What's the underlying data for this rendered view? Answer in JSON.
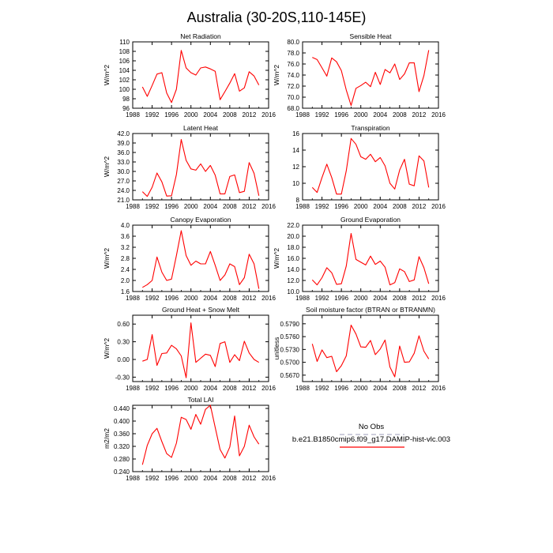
{
  "figure": {
    "title": "Australia (30-20S,110-145E)",
    "line_color": "#ff0000"
  },
  "legend": {
    "entries": [
      {
        "label": "No Obs",
        "color": "#b0b0c8",
        "dash": true
      },
      {
        "label": "b.e21.B1850cmip6.f09_g17.DAMIP-hist-vlc.003",
        "color": "#ff0000",
        "dash": false
      }
    ]
  },
  "chart_data": [
    {
      "type": "line",
      "title": "Net Radiation",
      "ylabel": "W/m^2",
      "xlim": [
        1988,
        2016
      ],
      "ylim": [
        96,
        110
      ],
      "xticks": [
        "1988",
        "1992",
        "1996",
        "2000",
        "2004",
        "2008",
        "2012",
        "2016"
      ],
      "yticks": [
        "96",
        "98",
        "100",
        "102",
        "104",
        "106",
        "108",
        "110"
      ],
      "x": [
        1990,
        1991,
        1992,
        1993,
        1994,
        1995,
        1996,
        1997,
        1998,
        1999,
        2000,
        2001,
        2002,
        2003,
        2004,
        2005,
        2006,
        2007,
        2008,
        2009,
        2010,
        2011,
        2012,
        2013,
        2014
      ],
      "y": [
        100.5,
        98.5,
        100.8,
        103.2,
        103.5,
        99.2,
        97.2,
        100.0,
        108.2,
        104.5,
        103.5,
        103.0,
        104.5,
        104.7,
        104.3,
        103.8,
        97.8,
        99.5,
        101.3,
        103.3,
        99.6,
        100.3,
        103.7,
        102.8,
        100.9
      ]
    },
    {
      "type": "line",
      "title": "Sensible Heat",
      "ylabel": "W/m^2",
      "xlim": [
        1988,
        2016
      ],
      "ylim": [
        68,
        80
      ],
      "xticks": [
        "1988",
        "1992",
        "1996",
        "2000",
        "2004",
        "2008",
        "2012",
        "2016"
      ],
      "yticks": [
        "68.0",
        "70.0",
        "72.0",
        "74.0",
        "76.0",
        "78.0",
        "80.0"
      ],
      "x": [
        1990,
        1991,
        1992,
        1993,
        1994,
        1995,
        1996,
        1997,
        1998,
        1999,
        2000,
        2001,
        2002,
        2003,
        2004,
        2005,
        2006,
        2007,
        2008,
        2009,
        2010,
        2011,
        2012,
        2013,
        2014
      ],
      "y": [
        77.2,
        76.8,
        75.3,
        73.8,
        77.1,
        76.4,
        74.8,
        71.3,
        68.5,
        71.6,
        72.1,
        72.7,
        71.9,
        74.5,
        72.3,
        75.0,
        74.4,
        76.0,
        73.2,
        74.2,
        76.2,
        76.2,
        71.0,
        73.9,
        78.5
      ]
    },
    {
      "type": "line",
      "title": "Latent Heat",
      "ylabel": "W/m^2",
      "xlim": [
        1988,
        2016
      ],
      "ylim": [
        21,
        42
      ],
      "xticks": [
        "1988",
        "1992",
        "1996",
        "2000",
        "2004",
        "2008",
        "2012",
        "2016"
      ],
      "yticks": [
        "21.0",
        "24.0",
        "27.0",
        "30.0",
        "33.0",
        "36.0",
        "39.0",
        "42.0"
      ],
      "x": [
        1990,
        1991,
        1992,
        1993,
        1994,
        1995,
        1996,
        1997,
        1998,
        1999,
        2000,
        2001,
        2002,
        2003,
        2004,
        2005,
        2006,
        2007,
        2008,
        2009,
        2010,
        2011,
        2012,
        2013,
        2014
      ],
      "y": [
        23.6,
        22.1,
        25.0,
        29.5,
        26.7,
        22.2,
        22.3,
        29.0,
        40.1,
        33.5,
        30.8,
        30.4,
        32.4,
        30.0,
        31.9,
        28.8,
        22.9,
        22.9,
        28.4,
        28.9,
        23.3,
        23.7,
        32.8,
        29.4,
        22.3
      ]
    },
    {
      "type": "line",
      "title": "Transpiration",
      "ylabel": "",
      "xlim": [
        1988,
        2016
      ],
      "ylim": [
        8,
        16
      ],
      "xticks": [
        "1988",
        "1992",
        "1996",
        "2000",
        "2004",
        "2008",
        "2012",
        "2016"
      ],
      "yticks": [
        "8",
        "10",
        "12",
        "14",
        "16"
      ],
      "x": [
        1990,
        1991,
        1992,
        1993,
        1994,
        1995,
        1996,
        1997,
        1998,
        1999,
        2000,
        2001,
        2002,
        2003,
        2004,
        2005,
        2006,
        2007,
        2008,
        2009,
        2010,
        2011,
        2012,
        2013,
        2014
      ],
      "y": [
        9.5,
        8.9,
        10.7,
        12.3,
        10.7,
        8.7,
        8.7,
        11.5,
        15.4,
        14.7,
        13.2,
        12.9,
        13.5,
        12.6,
        13.1,
        12.1,
        10.0,
        9.3,
        11.6,
        12.9,
        9.9,
        9.7,
        13.3,
        12.7,
        9.5
      ]
    },
    {
      "type": "line",
      "title": "Canopy Evaporation",
      "ylabel": "W/m^2",
      "xlim": [
        1988,
        2016
      ],
      "ylim": [
        1.6,
        4.0
      ],
      "xticks": [
        "1988",
        "1992",
        "1996",
        "2000",
        "2004",
        "2008",
        "2012",
        "2016"
      ],
      "yticks": [
        "1.6",
        "2.0",
        "2.4",
        "2.8",
        "3.2",
        "3.6",
        "4.0"
      ],
      "x": [
        1990,
        1991,
        1992,
        1993,
        1994,
        1995,
        1996,
        1997,
        1998,
        1999,
        2000,
        2001,
        2002,
        2003,
        2004,
        2005,
        2006,
        2007,
        2008,
        2009,
        2010,
        2011,
        2012,
        2013,
        2014
      ],
      "y": [
        1.75,
        1.85,
        2.0,
        2.85,
        2.3,
        2.0,
        2.05,
        2.9,
        3.8,
        2.9,
        2.55,
        2.7,
        2.6,
        2.6,
        3.05,
        2.55,
        2.0,
        2.2,
        2.6,
        2.5,
        1.85,
        2.1,
        2.95,
        2.6,
        1.7
      ]
    },
    {
      "type": "line",
      "title": "Ground Evaporation",
      "ylabel": "W/m^2",
      "xlim": [
        1988,
        2016
      ],
      "ylim": [
        10,
        22
      ],
      "xticks": [
        "1988",
        "1992",
        "1996",
        "2000",
        "2004",
        "2008",
        "2012",
        "2016"
      ],
      "yticks": [
        "10.0",
        "12.0",
        "14.0",
        "16.0",
        "18.0",
        "20.0",
        "22.0"
      ],
      "x": [
        1990,
        1991,
        1992,
        1993,
        1994,
        1995,
        1996,
        1997,
        1998,
        1999,
        2000,
        2001,
        2002,
        2003,
        2004,
        2005,
        2006,
        2007,
        2008,
        2009,
        2010,
        2011,
        2012,
        2013,
        2014
      ],
      "y": [
        12.1,
        11.2,
        12.5,
        14.3,
        13.4,
        11.3,
        11.4,
        14.6,
        20.5,
        15.8,
        15.3,
        14.8,
        16.4,
        14.9,
        15.5,
        14.4,
        11.2,
        11.6,
        14.1,
        13.6,
        11.8,
        12.1,
        16.3,
        14.3,
        11.4
      ]
    },
    {
      "type": "line",
      "title": "Ground Heat + Snow Melt",
      "ylabel": "W/m^2",
      "xlim": [
        1988,
        2016
      ],
      "ylim": [
        -0.375,
        0.75
      ],
      "xticks": [
        "1988",
        "1992",
        "1996",
        "2000",
        "2004",
        "2008",
        "2012",
        "2016"
      ],
      "yticks": [
        "-0.30",
        "0.00",
        "0.30",
        "0.60"
      ],
      "ytick_values": [
        -0.3,
        0.0,
        0.3,
        0.6
      ],
      "x": [
        1990,
        1991,
        1992,
        1993,
        1994,
        1995,
        1996,
        1997,
        1998,
        1999,
        2000,
        2001,
        2002,
        2003,
        2004,
        2005,
        2006,
        2007,
        2008,
        2009,
        2010,
        2011,
        2012,
        2013,
        2014
      ],
      "y": [
        -0.03,
        0.0,
        0.42,
        -0.1,
        0.1,
        0.11,
        0.24,
        0.18,
        0.06,
        -0.31,
        0.62,
        -0.05,
        0.02,
        0.09,
        0.07,
        -0.12,
        0.27,
        0.3,
        -0.05,
        0.08,
        -0.02,
        0.31,
        0.11,
        0.0,
        -0.05
      ]
    },
    {
      "type": "line",
      "title": "Soil moisture factor (BTRAN or BTRANMN)",
      "ylabel": "unitless",
      "xlim": [
        1988,
        2016
      ],
      "ylim": [
        0.5655,
        0.581
      ],
      "xticks": [
        "1988",
        "1992",
        "1996",
        "2000",
        "2004",
        "2008",
        "2012",
        "2016"
      ],
      "yticks": [
        "0.5670",
        "0.5700",
        "0.5730",
        "0.5760",
        "0.5790"
      ],
      "ytick_values": [
        0.567,
        0.57,
        0.573,
        0.576,
        0.579
      ],
      "x": [
        1990,
        1991,
        1992,
        1993,
        1994,
        1995,
        1996,
        1997,
        1998,
        1999,
        2000,
        2001,
        2002,
        2003,
        2004,
        2005,
        2006,
        2007,
        2008,
        2009,
        2010,
        2011,
        2012,
        2013,
        2014
      ],
      "y": [
        0.5743,
        0.5702,
        0.5729,
        0.5711,
        0.5714,
        0.5678,
        0.5692,
        0.5715,
        0.5787,
        0.5766,
        0.5736,
        0.5735,
        0.5751,
        0.5718,
        0.5731,
        0.5752,
        0.5689,
        0.5666,
        0.5738,
        0.57,
        0.5701,
        0.5721,
        0.5762,
        0.5726,
        0.5708
      ]
    },
    {
      "type": "line",
      "title": "Total LAI",
      "ylabel": "m2/m2",
      "xlim": [
        1988,
        2016
      ],
      "ylim": [
        0.24,
        0.45
      ],
      "xticks": [
        "1988",
        "1992",
        "1996",
        "2000",
        "2004",
        "2008",
        "2012",
        "2016"
      ],
      "yticks": [
        "0.240",
        "0.280",
        "0.320",
        "0.360",
        "0.400",
        "0.440"
      ],
      "ytick_values": [
        0.24,
        0.28,
        0.32,
        0.36,
        0.4,
        0.44
      ],
      "x": [
        1990,
        1991,
        1992,
        1993,
        1994,
        1995,
        1996,
        1997,
        1998,
        1999,
        2000,
        2001,
        2002,
        2003,
        2004,
        2005,
        2006,
        2007,
        2008,
        2009,
        2010,
        2011,
        2012,
        2013,
        2014
      ],
      "y": [
        0.262,
        0.323,
        0.36,
        0.377,
        0.335,
        0.297,
        0.285,
        0.33,
        0.412,
        0.405,
        0.374,
        0.421,
        0.39,
        0.437,
        0.45,
        0.38,
        0.31,
        0.283,
        0.318,
        0.416,
        0.29,
        0.32,
        0.387,
        0.35,
        0.327
      ]
    }
  ]
}
